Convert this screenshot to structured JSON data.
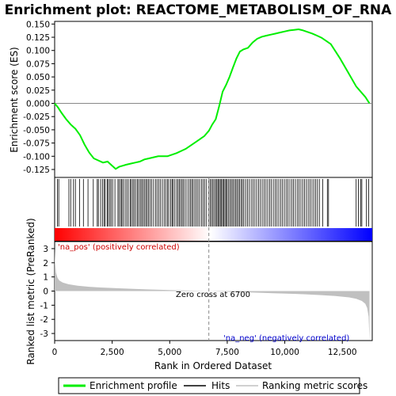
{
  "chart_data": {
    "type": "line",
    "title": "Enrichment plot: REACTOME_METABOLISM_OF_RNA",
    "top_panel": {
      "ylabel": "Enrichment score (ES)",
      "ylim": [
        -0.14,
        0.155
      ],
      "yticks": [
        "0.150",
        "0.125",
        "0.100",
        "0.075",
        "0.050",
        "0.025",
        "0.000",
        "-0.025",
        "-0.050",
        "-0.075",
        "-0.100",
        "-0.125"
      ],
      "ytick_values": [
        0.15,
        0.125,
        0.1,
        0.075,
        0.05,
        0.025,
        0.0,
        -0.025,
        -0.05,
        -0.075,
        -0.1,
        -0.125
      ],
      "series": [
        {
          "name": "Enrichment profile",
          "color": "#00ee00",
          "x": [
            0,
            150,
            300,
            500,
            700,
            900,
            1100,
            1300,
            1500,
            1700,
            1900,
            2100,
            2300,
            2500,
            2650,
            2800,
            2950,
            3100,
            3300,
            3500,
            3700,
            3900,
            4100,
            4300,
            4500,
            4700,
            4900,
            5100,
            5300,
            5500,
            5700,
            5900,
            6100,
            6300,
            6500,
            6700,
            6850,
            7000,
            7150,
            7300,
            7450,
            7600,
            7750,
            7900,
            8050,
            8200,
            8400,
            8600,
            8800,
            9000,
            9200,
            9400,
            9600,
            9800,
            10000,
            10200,
            10400,
            10600,
            10800,
            11000,
            11200,
            11400,
            11600,
            11800,
            12000,
            12400,
            12800,
            13100,
            13300,
            13500,
            13680
          ],
          "y": [
            0.0,
            -0.008,
            -0.018,
            -0.03,
            -0.04,
            -0.048,
            -0.06,
            -0.078,
            -0.093,
            -0.104,
            -0.108,
            -0.112,
            -0.11,
            -0.118,
            -0.124,
            -0.12,
            -0.118,
            -0.116,
            -0.114,
            -0.112,
            -0.11,
            -0.106,
            -0.104,
            -0.102,
            -0.1,
            -0.1,
            -0.1,
            -0.097,
            -0.094,
            -0.09,
            -0.086,
            -0.08,
            -0.074,
            -0.068,
            -0.062,
            -0.052,
            -0.04,
            -0.03,
            -0.005,
            0.022,
            0.035,
            0.05,
            0.068,
            0.085,
            0.098,
            0.102,
            0.105,
            0.115,
            0.122,
            0.126,
            0.128,
            0.13,
            0.132,
            0.134,
            0.136,
            0.138,
            0.139,
            0.14,
            0.138,
            0.135,
            0.132,
            0.128,
            0.124,
            0.118,
            0.112,
            0.085,
            0.055,
            0.032,
            0.022,
            0.012,
            0.0
          ]
        }
      ]
    },
    "hits_panel": {
      "legend_name": "Hits"
    },
    "bottom_panel": {
      "ylabel": "Ranked list metric (PreRanked)",
      "ylim": [
        -3.5,
        3.5
      ],
      "yticks": [
        "3",
        "2",
        "1",
        "0",
        "-1",
        "-2",
        "-3"
      ],
      "ytick_values": [
        3,
        2,
        1,
        0,
        -1,
        -2,
        -3
      ],
      "series": [
        {
          "name": "Ranking metric scores",
          "color": "#c0c0c0",
          "x": [
            0,
            20,
            60,
            120,
            200,
            350,
            600,
            1000,
            1500,
            2000,
            3000,
            4000,
            5000,
            6000,
            6700,
            7500,
            8500,
            9500,
            10500,
            11500,
            12200,
            12800,
            13100,
            13350,
            13500,
            13580,
            13640,
            13680
          ],
          "y": [
            3.0,
            2.0,
            1.3,
            0.95,
            0.75,
            0.6,
            0.48,
            0.38,
            0.3,
            0.25,
            0.18,
            0.12,
            0.07,
            0.03,
            0.0,
            -0.05,
            -0.1,
            -0.15,
            -0.2,
            -0.28,
            -0.35,
            -0.45,
            -0.55,
            -0.7,
            -0.9,
            -1.2,
            -1.8,
            -3.4
          ]
        }
      ],
      "annotations": {
        "pos_label": "'na_pos' (positively correlated)",
        "neg_label": "'na_neg' (negatively correlated)",
        "zero_label": "Zero cross at 6700"
      },
      "zero_cross": 6700
    },
    "xlabel": "Rank in Ordered Dataset",
    "xlim": [
      0,
      13800
    ],
    "xticks": [
      "0",
      "2,500",
      "5,000",
      "7,500",
      "10,000",
      "12,500"
    ],
    "xtick_values": [
      0,
      2500,
      5000,
      7500,
      10000,
      12500
    ],
    "hits": [
      120,
      180,
      620,
      700,
      820,
      900,
      1080,
      1250,
      1450,
      1680,
      1850,
      1900,
      2000,
      2080,
      2150,
      2200,
      2280,
      2330,
      2400,
      2450,
      2520,
      2620,
      2750,
      2800,
      2880,
      2920,
      2980,
      3060,
      3130,
      3200,
      3280,
      3330,
      3400,
      3450,
      3520,
      3600,
      3650,
      3720,
      3780,
      3840,
      3900,
      3960,
      4020,
      4080,
      4150,
      4220,
      4300,
      4380,
      4450,
      4530,
      4600,
      4680,
      4760,
      4830,
      4900,
      4960,
      5040,
      5100,
      5150,
      5220,
      5300,
      5360,
      5420,
      5480,
      5540,
      5600,
      5670,
      5750,
      5830,
      5900,
      5960,
      6020,
      6090,
      6160,
      6230,
      6300,
      6380,
      6450,
      6520,
      6600,
      6700,
      6760,
      6820,
      6880,
      6940,
      7000,
      7050,
      7100,
      7150,
      7200,
      7250,
      7300,
      7350,
      7400,
      7450,
      7500,
      7560,
      7620,
      7680,
      7740,
      7800,
      7860,
      7920,
      7980,
      8040,
      8100,
      8160,
      8220,
      8300,
      8380,
      8460,
      8540,
      8620,
      8700,
      8780,
      8860,
      8940,
      9020,
      9100,
      9180,
      9260,
      9340,
      9420,
      9500,
      9580,
      9660,
      9740,
      9820,
      9900,
      9980,
      10060,
      10140,
      10220,
      10300,
      10380,
      10460,
      10540,
      10620,
      10700,
      10780,
      10860,
      10940,
      11020,
      11100,
      11180,
      11260,
      11340,
      11420,
      11500,
      11650,
      11850,
      11900,
      13100,
      13200,
      13300,
      13350,
      13550,
      13650
    ],
    "gradient_colors": {
      "positive": "#ff0000",
      "neutral": "#ffffff",
      "negative": "#0000ff"
    },
    "legend": [
      {
        "label": "Enrichment profile",
        "color": "#00ee00"
      },
      {
        "label": "Hits",
        "color": "#000000"
      },
      {
        "label": "Ranking metric scores",
        "color": "#c0c0c0"
      }
    ]
  }
}
